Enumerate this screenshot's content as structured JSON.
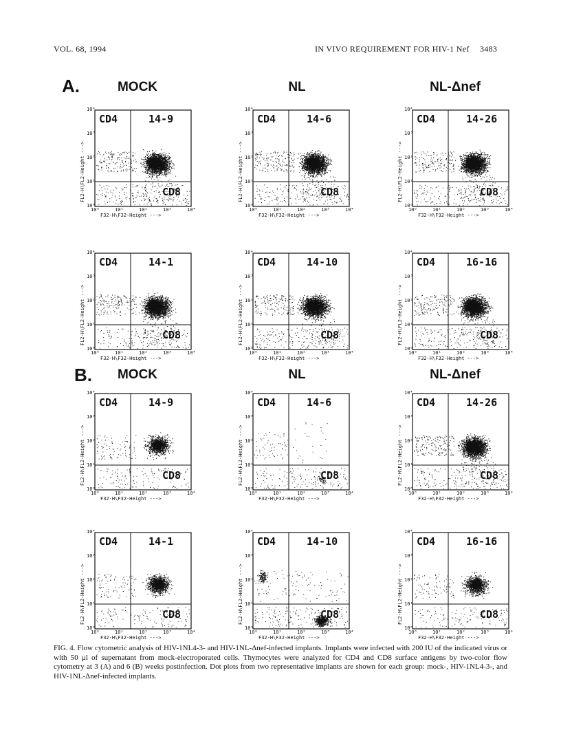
{
  "header": {
    "left": "VOL. 68, 1994",
    "right": "IN VIVO REQUIREMENT FOR HIV-1 Nef",
    "page": "3483"
  },
  "sections": [
    {
      "letter": "A.",
      "columns": [
        "MOCK",
        "NL",
        "NL-Δnef"
      ]
    },
    {
      "letter": "B.",
      "columns": [
        "MOCK",
        "NL",
        "NL-Δnef"
      ]
    }
  ],
  "axes": {
    "x_label": "F32-H\\F32-Height --->",
    "y_label": "FL2-H\\FL2-Height --->",
    "x_ticks": [
      "10⁰",
      "10¹",
      "10²",
      "10³",
      "10⁴"
    ],
    "y_ticks": [
      "10⁰",
      "10¹",
      "10²",
      "10³",
      "10⁴"
    ]
  },
  "plots": [
    {
      "section": "A",
      "row": 0,
      "col": 0,
      "ul": "CD4",
      "id": "14-9",
      "lr": "CD8",
      "pattern": "dense"
    },
    {
      "section": "A",
      "row": 0,
      "col": 1,
      "ul": "CD4",
      "id": "14-6",
      "lr": "CD8",
      "pattern": "dense"
    },
    {
      "section": "A",
      "row": 0,
      "col": 2,
      "ul": "CD4",
      "id": "14-26",
      "lr": "CD8",
      "pattern": "dense"
    },
    {
      "section": "A",
      "row": 1,
      "col": 0,
      "ul": "CD4",
      "id": "14-1",
      "lr": "CD8",
      "pattern": "dense"
    },
    {
      "section": "A",
      "row": 1,
      "col": 1,
      "ul": "CD4",
      "id": "14-10",
      "lr": "CD8",
      "pattern": "dense"
    },
    {
      "section": "A",
      "row": 1,
      "col": 2,
      "ul": "CD4",
      "id": "16-16",
      "lr": "CD8",
      "pattern": "dense"
    },
    {
      "section": "B",
      "row": 0,
      "col": 0,
      "ul": "CD4",
      "id": "14-9",
      "lr": "CD8",
      "pattern": "medium"
    },
    {
      "section": "B",
      "row": 0,
      "col": 1,
      "ul": "CD4",
      "id": "14-6",
      "lr": "CD8",
      "pattern": "sparse"
    },
    {
      "section": "B",
      "row": 0,
      "col": 2,
      "ul": "CD4",
      "id": "14-26",
      "lr": "CD8",
      "pattern": "dense"
    },
    {
      "section": "B",
      "row": 1,
      "col": 0,
      "ul": "CD4",
      "id": "14-1",
      "lr": "CD8",
      "pattern": "medium"
    },
    {
      "section": "B",
      "row": 1,
      "col": 1,
      "ul": "CD4",
      "id": "14-10",
      "lr": "CD8",
      "pattern": "cd8"
    },
    {
      "section": "B",
      "row": 1,
      "col": 2,
      "ul": "CD4",
      "id": "16-16",
      "lr": "CD8",
      "pattern": "medium"
    }
  ],
  "caption": "FIG. 4. Flow cytometric analysis of HIV-1NL4-3- and HIV-1NL-Δnef-infected implants. Implants were infected with 200 IU of the indicated virus or with 50 μl of supernatant from mock-electroporated cells. Thymocytes were analyzed for CD4 and CD8 surface antigens by two-color flow cytometry at 3 (A) and 6 (B) weeks postinfection. Dot plots from two representative implants are shown for each group: mock-, HIV-1NL4-3-, and HIV-1NL-Δnef-infected implants."
}
